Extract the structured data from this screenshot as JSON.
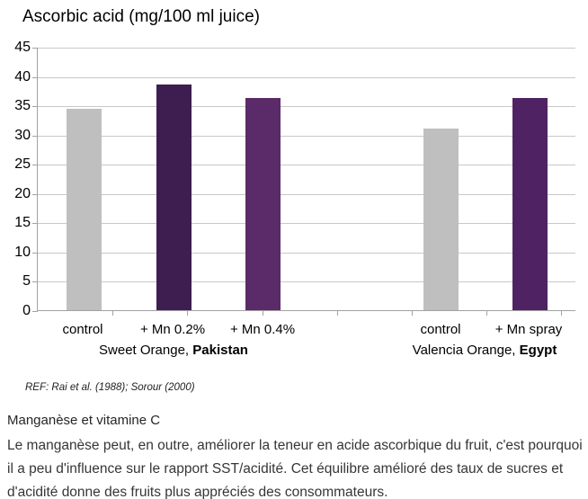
{
  "chart_data": {
    "type": "bar",
    "title": "Ascorbic acid (mg/100 ml juice)",
    "categories": [
      "control",
      "+ Mn 0.2%",
      "+ Mn 0.4%",
      "control",
      "+ Mn spray"
    ],
    "values": [
      34.4,
      38.5,
      36.3,
      31.1,
      36.2
    ],
    "bar_colors": [
      "#bfbfbf",
      "#3e1e50",
      "#5b2a68",
      "#bfbfbf",
      "#4f2363"
    ],
    "groups": [
      {
        "label": "Sweet Orange, ",
        "label_bold": "Pakistan",
        "category_indices": [
          0,
          1,
          2
        ]
      },
      {
        "label": "Valencia Orange, ",
        "label_bold": "Egypt",
        "category_indices": [
          3,
          4
        ]
      }
    ],
    "ylim": [
      0,
      45
    ],
    "ytick_step": 5,
    "y_ticks": [
      45,
      40,
      35,
      30,
      25,
      20,
      15,
      10,
      5,
      0
    ],
    "grid": true,
    "legend": false
  },
  "reference": "REF: Rai et al. (1988); Sorour (2000)",
  "section": {
    "heading": "Manganèse et vitamine C",
    "body": "Le manganèse peut, en outre, améliorer la teneur en acide ascorbique du fruit, c'est pourquoi il a peu d'influence sur le rapport SST/acidité. Cet équilibre amélioré des taux de sucres et d'acidité donne des fruits plus appréciés des consommateurs."
  },
  "colors": {
    "gridline": "#c8c8c8",
    "axis": "#a2a2a2",
    "control_bar": "#bfbfbf",
    "mn_02_bar": "#3e1e50",
    "mn_04_bar": "#5b2a68",
    "mn_spray_bar": "#4f2363"
  }
}
